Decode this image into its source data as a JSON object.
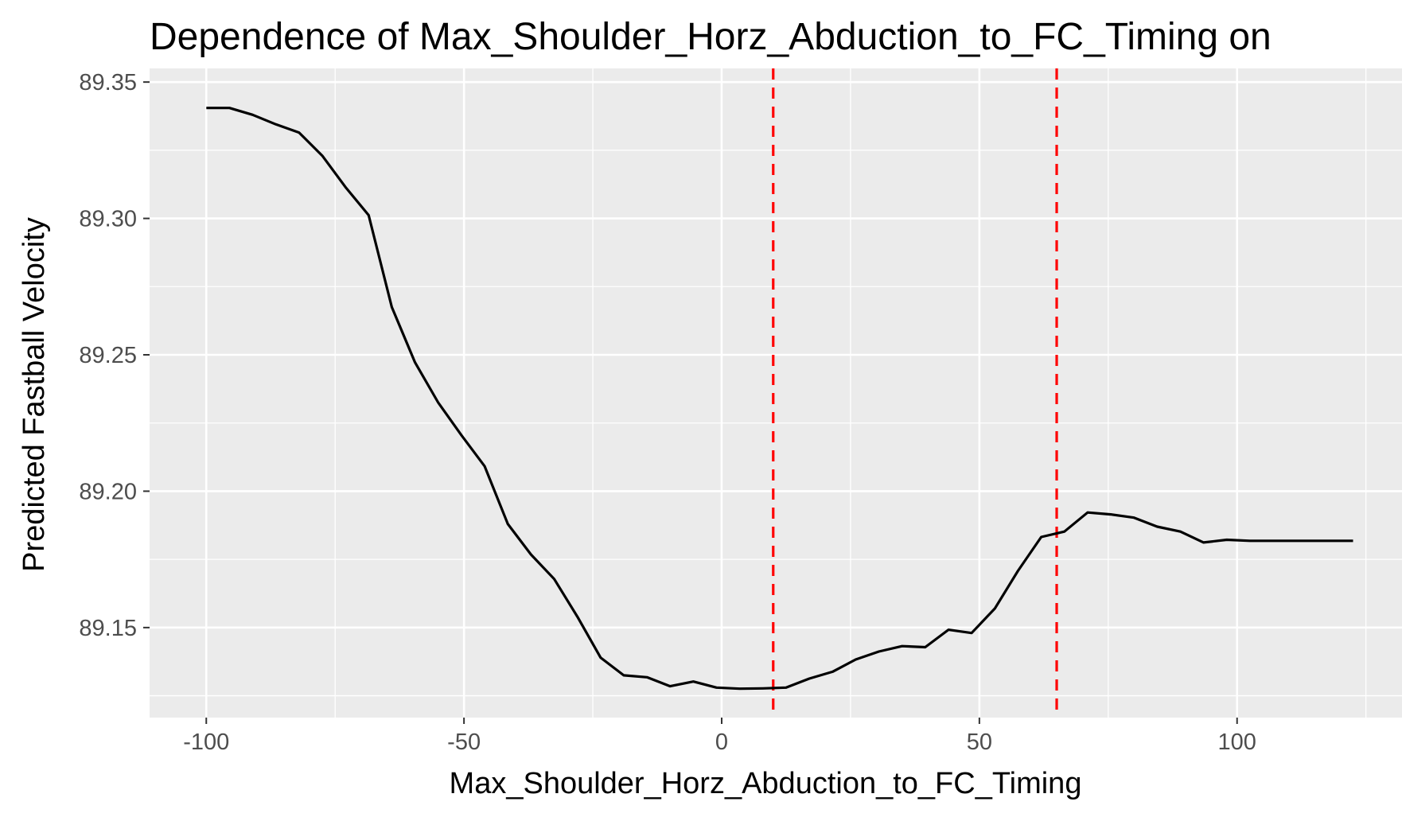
{
  "chart_data": {
    "type": "line",
    "title": "Dependence of Max_Shoulder_Horz_Abduction_to_FC_Timing on",
    "xlabel": "Max_Shoulder_Horz_Abduction_to_FC_Timing",
    "ylabel": "Predicted Fastball Velocity",
    "xlim": [
      -111,
      132
    ],
    "ylim": [
      89.117,
      89.355
    ],
    "x_ticks": [
      -100,
      -50,
      0,
      50,
      100
    ],
    "x_tick_labels": [
      "-100",
      "-50",
      "0",
      "50",
      "100"
    ],
    "y_ticks": [
      89.15,
      89.2,
      89.25,
      89.3,
      89.35
    ],
    "y_tick_labels": [
      "89.15",
      "89.20",
      "89.25",
      "89.30",
      "89.35"
    ],
    "grid": true,
    "legend": "none",
    "series": [
      {
        "color": "#000000",
        "x": [
          -100,
          -95.5,
          -91,
          -86.5,
          -82,
          -77.5,
          -73,
          -68.5,
          -64,
          -59.5,
          -55,
          -50.5,
          -46,
          -41.5,
          -37,
          -32.5,
          -28,
          -23.5,
          -19,
          -14.5,
          -10,
          -5.5,
          -1,
          3.5,
          8,
          12.5,
          17,
          21.5,
          26,
          30.5,
          35,
          39.5,
          44,
          48.5,
          53,
          57.5,
          62,
          66.5,
          71,
          75.5,
          80,
          84.5,
          89,
          93.5,
          98,
          102.5,
          107,
          111.5,
          116,
          122.5
        ],
        "y": [
          89.3405,
          89.3405,
          89.338,
          89.3345,
          89.3315,
          89.323,
          89.3115,
          89.3012,
          89.2675,
          89.2472,
          89.2325,
          89.2205,
          89.2092,
          89.188,
          89.1768,
          89.1678,
          89.154,
          89.139,
          89.1325,
          89.1318,
          89.1285,
          89.1302,
          89.128,
          89.1276,
          89.1277,
          89.128,
          89.1313,
          89.1338,
          89.1383,
          89.1412,
          89.1432,
          89.1428,
          89.1492,
          89.148,
          89.157,
          89.1708,
          89.1832,
          89.1852,
          89.1922,
          89.1915,
          89.1903,
          89.187,
          89.1852,
          89.1812,
          89.1822,
          89.1818,
          89.1818,
          89.1818,
          89.1818,
          89.1818
        ]
      }
    ],
    "reference_lines": [
      {
        "axis": "x",
        "value": 10,
        "color": "#ff0000",
        "style": "dashed"
      },
      {
        "axis": "x",
        "value": 65,
        "color": "#ff0000",
        "style": "dashed"
      }
    ],
    "colors": {
      "panel_background": "#ebebeb",
      "grid": "#ffffff",
      "line": "#000000",
      "reference_line": "#ff0000",
      "tick_label": "#4d4d4d",
      "tick_mark": "#333333"
    }
  }
}
